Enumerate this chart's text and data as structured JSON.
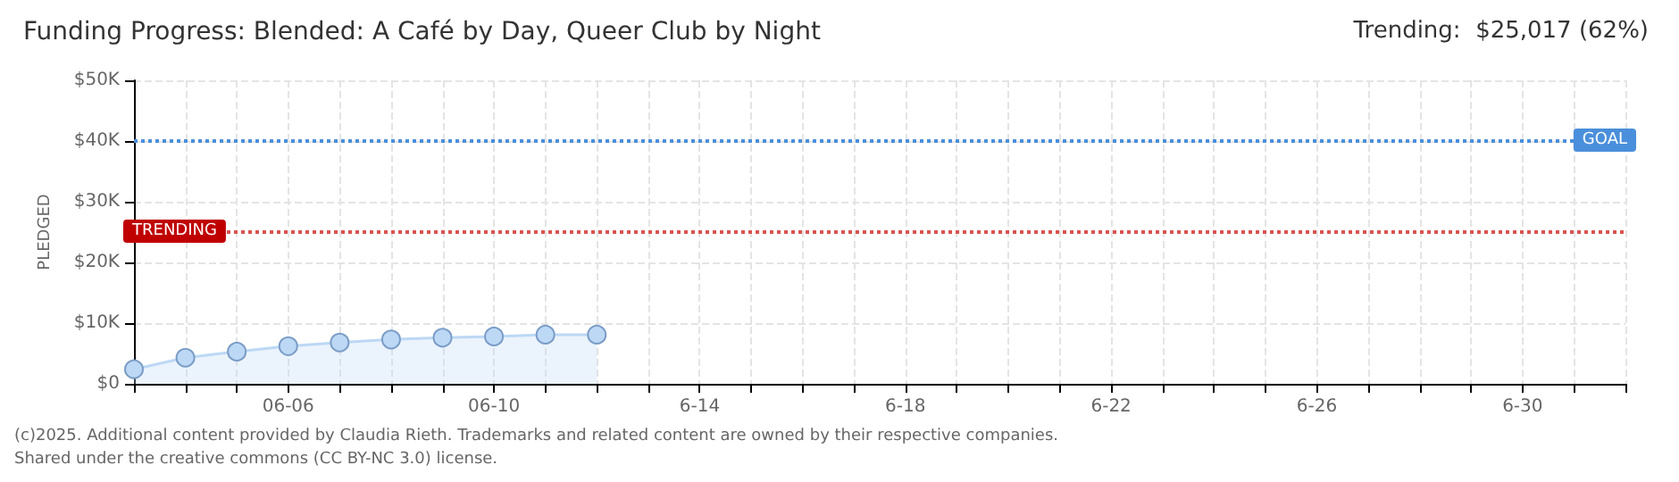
{
  "chart_data": {
    "type": "area",
    "title": "Funding Progress: Blended: A Café by Day, Queer Club by Night",
    "subtitle": "Trending:  $25,017 (62%)",
    "ylabel": "PLEDGED",
    "categories": [
      null,
      null,
      null,
      "06-06",
      null,
      null,
      null,
      "06-10",
      null,
      null,
      null,
      "6-14",
      null,
      null,
      null,
      "6-18",
      null,
      null,
      null,
      "6-22",
      null,
      null,
      null,
      "6-26",
      null,
      null,
      null,
      "6-30",
      null,
      null
    ],
    "series": [
      {
        "color": "#bcd8f5",
        "values": [
          2400,
          4300,
          5300,
          6200,
          6800,
          7300,
          7600,
          7800,
          8100,
          8100,
          null,
          null,
          null,
          null,
          null,
          null,
          null,
          null,
          null,
          null,
          null,
          null,
          null,
          null,
          null,
          null,
          null,
          null,
          null,
          null
        ]
      }
    ],
    "ylim": [
      0,
      50000
    ],
    "yticks": [
      {
        "value": 0,
        "label": "$0"
      },
      {
        "value": 10000,
        "label": "$10K"
      },
      {
        "value": 20000,
        "label": "$20K"
      },
      {
        "value": 30000,
        "label": "$30K"
      },
      {
        "value": 40000,
        "label": "$40K"
      },
      {
        "value": 50000,
        "label": "$50K"
      }
    ],
    "ref_lines": [
      {
        "axis": "y",
        "value": 40000,
        "label": "GOAL",
        "color": "#4a8fdb",
        "line_style": "dotted"
      },
      {
        "axis": "y",
        "value": 25000,
        "label": "TRENDING",
        "color": "#d9534f",
        "line_style": "dotted"
      }
    ],
    "grid": true,
    "marker": "circle",
    "annotations": [
      "(c)2025. Additional content provided by Claudia Rieth. Trademarks and related content are owned by their respective companies.",
      "Shared under the creative commons (CC BY-NC 3.0) license."
    ]
  }
}
